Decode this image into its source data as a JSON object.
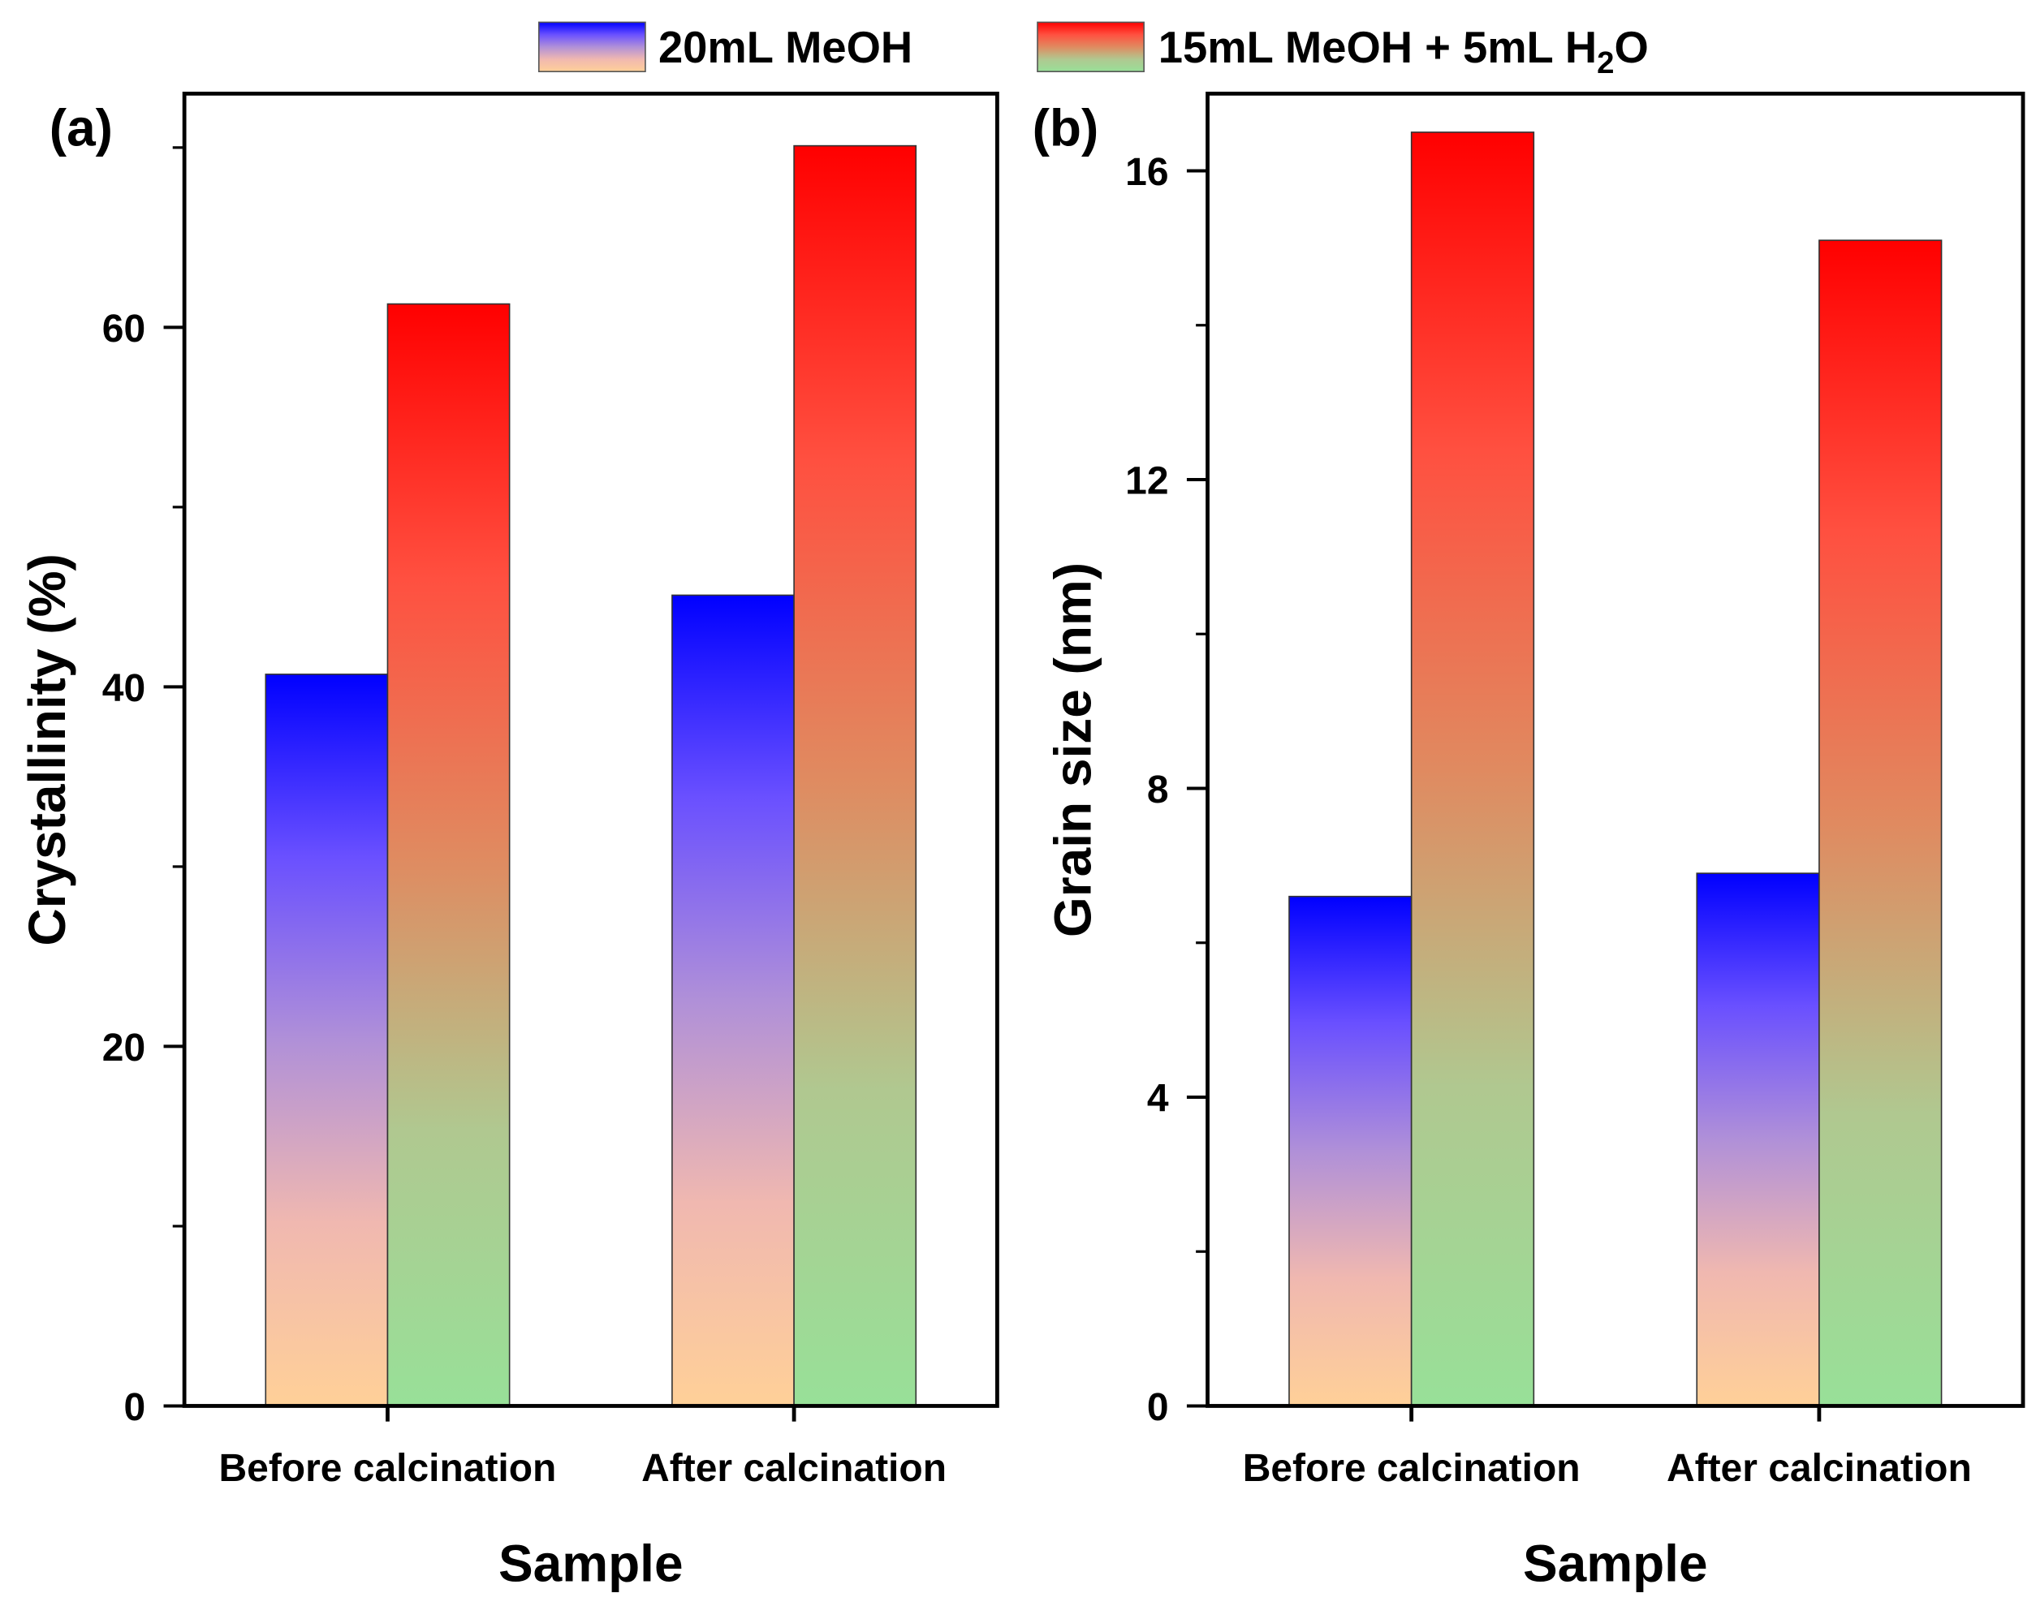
{
  "legend": [
    {
      "label": "20mL MeOH",
      "gradient": [
        "#0000ff",
        "#6a50ff",
        "#b090d8",
        "#f0b8b0",
        "#ffd098"
      ]
    },
    {
      "label_main": "15mL MeOH + 5mL H",
      "label_sub": "2",
      "label_end": "O",
      "gradient": [
        "#ff0000",
        "#ff5040",
        "#e08a60",
        "#b0c890",
        "#98e098"
      ]
    }
  ],
  "chart_data": [
    {
      "type": "bar",
      "panel_label": "(a)",
      "title": "",
      "xlabel": "Sample",
      "ylabel": "Crystallinity (%)",
      "categories": [
        "Before calcination",
        "After calcination"
      ],
      "series": [
        {
          "name": "20mL MeOH",
          "values": [
            40.7,
            45.1
          ]
        },
        {
          "name": "15mL MeOH + 5mL H2O",
          "values": [
            61.3,
            70.1
          ]
        }
      ],
      "ylim": [
        0,
        73
      ],
      "yticks": [
        0,
        20,
        40,
        60
      ],
      "yticks_minor": [
        10,
        30,
        50,
        70
      ],
      "ytick_labels": [
        "0",
        "20",
        "40",
        "60"
      ],
      "grid": false,
      "legend_position": "top"
    },
    {
      "type": "bar",
      "panel_label": "(b)",
      "title": "",
      "xlabel": "Sample",
      "ylabel": "Grain size (nm)",
      "categories": [
        "Before calcination",
        "After calcination"
      ],
      "series": [
        {
          "name": "20mL MeOH",
          "values": [
            6.6,
            6.9
          ]
        },
        {
          "name": "15mL MeOH + 5mL H2O",
          "values": [
            16.5,
            15.1
          ]
        }
      ],
      "ylim": [
        0,
        17
      ],
      "yticks": [
        0,
        4,
        8,
        12,
        16
      ],
      "yticks_minor": [
        2,
        6,
        10,
        14
      ],
      "ytick_labels": [
        "0",
        "4",
        "8",
        "12",
        "16"
      ],
      "grid": false,
      "legend_position": "top"
    }
  ]
}
